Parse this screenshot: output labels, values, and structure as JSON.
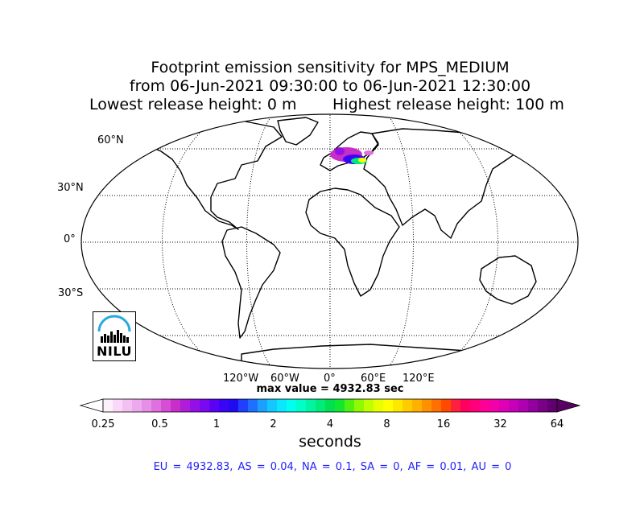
{
  "title": {
    "line1": "Footprint emission sensitivity for MPS_MEDIUM",
    "line2": "from 06-Jun-2021 09:30:00 to 06-Jun-2021 12:30:00",
    "line3_left": "Lowest release height: 0 m",
    "line3_right": "Highest release height: 100 m"
  },
  "map": {
    "projection": "Robinson",
    "lat_labels": [
      "60°N",
      "30°N",
      "0°",
      "30°S"
    ],
    "lon_labels": [
      "120°W",
      "60°W",
      "0°",
      "60°E",
      "120°E"
    ]
  },
  "logo": {
    "text": "NILU",
    "color": "#29a8e0"
  },
  "max_value": "max value = 4932.83 sec",
  "colorbar": {
    "ticks": [
      "0.25",
      "0.5",
      "1",
      "2",
      "4",
      "8",
      "16",
      "32",
      "64"
    ],
    "units": "seconds",
    "colors": [
      "#fdf0fd",
      "#f9d8f9",
      "#f3c0f3",
      "#eea8ee",
      "#e78ee7",
      "#e070e0",
      "#d64ed6",
      "#c82ec8",
      "#b11cd8",
      "#9410e6",
      "#7a08f0",
      "#5c02f4",
      "#3a05f6",
      "#200af0",
      "#1f40ff",
      "#1f70ff",
      "#1aa0ff",
      "#12c8ff",
      "#0ae8ff",
      "#00fff0",
      "#00ffc8",
      "#00f5a0",
      "#00ec78",
      "#00e050",
      "#10e830",
      "#50f010",
      "#90f800",
      "#c0ff00",
      "#e8ff00",
      "#ffff00",
      "#ffe800",
      "#ffcc00",
      "#ffb000",
      "#ff9000",
      "#ff7000",
      "#ff4a00",
      "#ff2040",
      "#ff0060",
      "#ff007a",
      "#ff0094",
      "#f200a8",
      "#de00b4",
      "#c600b8",
      "#ae00b0",
      "#9400a0",
      "#7a0088",
      "#600070"
    ]
  },
  "summary": "EU = 4932.83,  AS = 0.04,  NA = 0.1,  SA = 0,  AF = 0.01,  AU = 0"
}
